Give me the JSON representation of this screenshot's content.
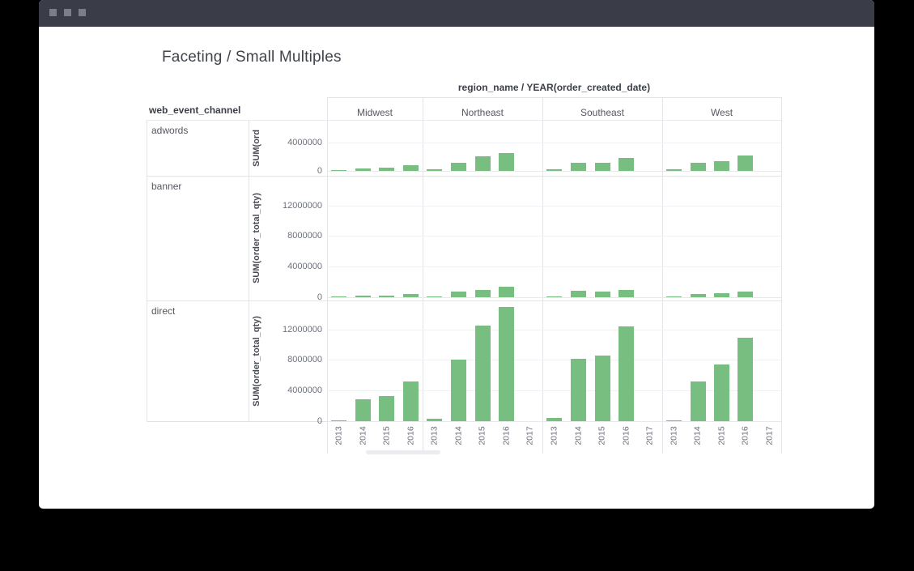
{
  "page": {
    "title": "Faceting / Small Multiples"
  },
  "titlebar": {
    "buttons": 3
  },
  "colors": {
    "bar": "#79be81",
    "titlebar": "#3a3d47",
    "grid": "#f0f1f4",
    "border": "#e3e4e8",
    "baseline": "#e7e9ec",
    "text_dark": "#3c3f47",
    "text_mid": "#54575e",
    "text_tick": "#6e717a"
  },
  "chart_data": {
    "type": "bar",
    "title": "Faceting / Small Multiples",
    "legend": "none",
    "grid": "on",
    "facet": {
      "column_header": "region_name / YEAR(order_created_date)",
      "row_header": "web_event_channel",
      "columns": [
        {
          "label": "Midwest",
          "years": [
            "2013",
            "2014",
            "2015",
            "2016"
          ]
        },
        {
          "label": "Northeast",
          "years": [
            "2013",
            "2014",
            "2015",
            "2016",
            "2017"
          ]
        },
        {
          "label": "Southeast",
          "years": [
            "2013",
            "2014",
            "2015",
            "2016",
            "2017"
          ]
        },
        {
          "label": "West",
          "years": [
            "2013",
            "2014",
            "2015",
            "2016",
            "2017"
          ]
        }
      ],
      "rows": [
        {
          "label": "adwords",
          "y_axis_label": "SUM(ord",
          "ylim": [
            0,
            7200000
          ],
          "ticks": [
            {
              "value": 4000000,
              "label": "4000000"
            },
            {
              "value": 0,
              "label": "0"
            }
          ],
          "values": {
            "Midwest": [
              150000,
              400000,
              450000,
              750000
            ],
            "Northeast": [
              200000,
              1200000,
              2000000,
              2500000,
              0
            ],
            "Southeast": [
              250000,
              1100000,
              1200000,
              1800000,
              0
            ],
            "West": [
              180000,
              1200000,
              1400000,
              2200000,
              0
            ]
          }
        },
        {
          "label": "banner",
          "y_axis_label": "SUM(order_total_qty)",
          "ylim": [
            0,
            16000000
          ],
          "ticks": [
            {
              "value": 12000000,
              "label": "12000000"
            },
            {
              "value": 8000000,
              "label": "8000000"
            },
            {
              "value": 4000000,
              "label": "4000000"
            },
            {
              "value": 0,
              "label": "0"
            }
          ],
          "values": {
            "Midwest": [
              100000,
              250000,
              200000,
              400000
            ],
            "Northeast": [
              120000,
              700000,
              900000,
              1350000,
              0
            ],
            "Southeast": [
              150000,
              800000,
              700000,
              1000000,
              0
            ],
            "West": [
              80000,
              450000,
              500000,
              700000,
              0
            ]
          }
        },
        {
          "label": "direct",
          "y_axis_label": "SUM(order_total_qty)",
          "ylim": [
            0,
            16000000
          ],
          "ticks": [
            {
              "value": 12000000,
              "label": "12000000"
            },
            {
              "value": 8000000,
              "label": "8000000"
            },
            {
              "value": 4000000,
              "label": "4000000"
            },
            {
              "value": 0,
              "label": "0"
            }
          ],
          "values": {
            "Midwest": [
              150000,
              2900000,
              3300000,
              5200000
            ],
            "Northeast": [
              350000,
              8000000,
              12500000,
              14900000,
              0
            ],
            "Southeast": [
              400000,
              8100000,
              8600000,
              12400000,
              0
            ],
            "West": [
              100000,
              5200000,
              7400000,
              10900000,
              0
            ]
          }
        }
      ]
    }
  }
}
